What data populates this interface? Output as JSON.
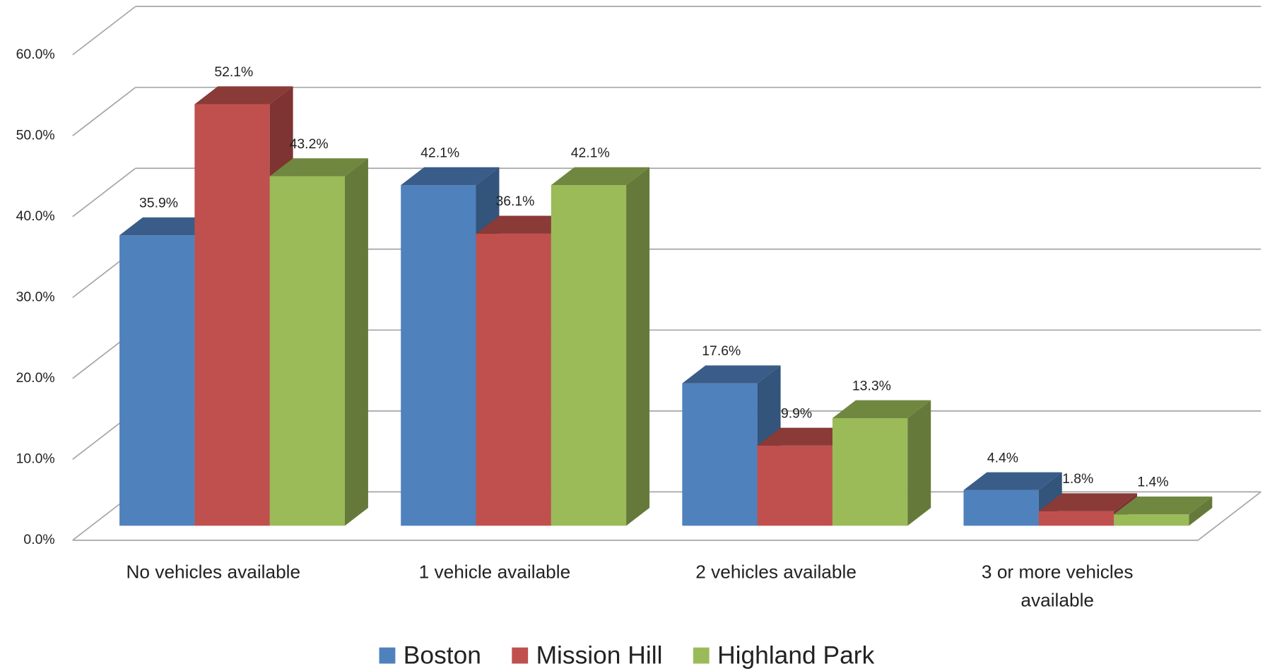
{
  "chart_data": {
    "type": "bar3d",
    "categories": [
      "No vehicles available",
      "1 vehicle available",
      "2 vehicles available",
      "3 or more vehicles available"
    ],
    "series": [
      {
        "name": "Boston",
        "color": "#4f81bd",
        "values": [
          35.9,
          42.1,
          17.6,
          4.4
        ],
        "value_labels": [
          "35.9%",
          "42.1%",
          "17.6%",
          "4.4%"
        ]
      },
      {
        "name": "Mission Hill",
        "color": "#c0504d",
        "values": [
          52.1,
          36.1,
          9.9,
          1.8
        ],
        "value_labels": [
          "52.1%",
          "36.1%",
          "9.9%",
          "1.8%"
        ]
      },
      {
        "name": "Highland Park",
        "color": "#9bbb59",
        "values": [
          43.2,
          42.1,
          13.3,
          1.4
        ],
        "value_labels": [
          "43.2%",
          "42.1%",
          "13.3%",
          "1.4%"
        ]
      }
    ],
    "ylim": [
      0,
      60
    ],
    "yticks": [
      {
        "value": 0,
        "label": "0.0%"
      },
      {
        "value": 10,
        "label": "10.0%"
      },
      {
        "value": 20,
        "label": "20.0%"
      },
      {
        "value": 30,
        "label": "30.0%"
      },
      {
        "value": 40,
        "label": "40.0%"
      },
      {
        "value": 50,
        "label": "50.0%"
      },
      {
        "value": 60,
        "label": "60.0%"
      }
    ],
    "grid": true,
    "legend": "bottom"
  }
}
